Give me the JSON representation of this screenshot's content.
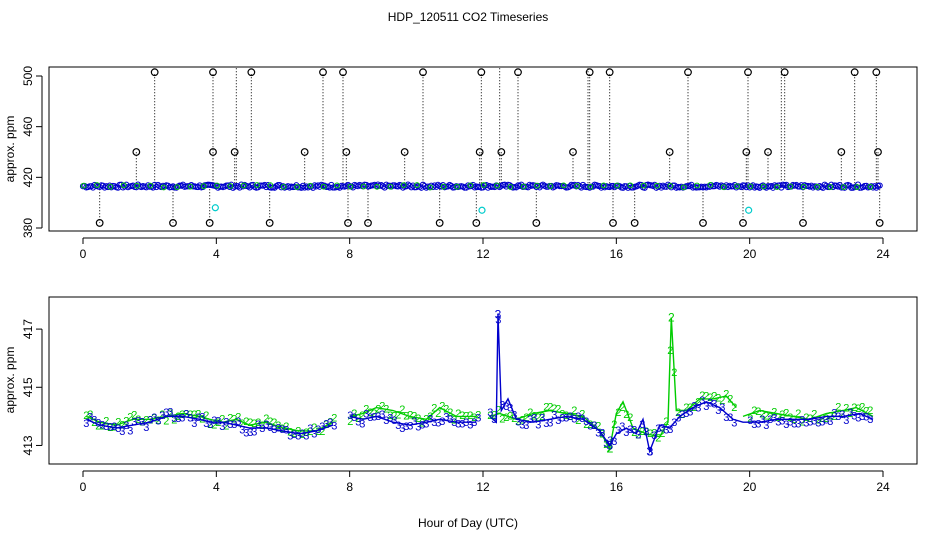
{
  "title": "HDP_120511  CO2 Timeseries",
  "xlabel": "Hour of Day (UTC)",
  "colors": {
    "series1": "#000000",
    "series2": "#00cc00",
    "series3": "#0000cc",
    "marker": "#00cccc"
  },
  "chart_data": [
    {
      "type": "scatter",
      "ylabel": "approx. ppm",
      "xlim": [
        0,
        24
      ],
      "ylim": [
        380,
        500
      ],
      "xticks": [
        "0",
        "4",
        "8",
        "12",
        "16",
        "20",
        "24"
      ],
      "yticks": [
        "380",
        "420",
        "460",
        "500"
      ],
      "baseline": 413,
      "spikes_high": [
        2.15,
        3.9,
        5.05,
        7.2,
        7.8,
        10.2,
        11.95,
        13.05,
        15.2,
        15.8,
        18.15,
        19.95,
        21.05,
        23.15,
        23.8
      ],
      "spikes_mid": [
        1.6,
        3.9,
        4.55,
        6.65,
        7.9,
        9.65,
        11.9,
        12.55,
        14.7,
        17.6,
        19.9,
        20.55,
        22.75,
        23.85
      ],
      "spikes_low": [
        0.5,
        2.7,
        3.8,
        5.6,
        7.95,
        8.55,
        10.7,
        11.8,
        13.6,
        15.9,
        16.55,
        18.6,
        19.8,
        21.6,
        23.9
      ],
      "cyan_points": [
        [
          3.97,
          396
        ],
        [
          11.97,
          394
        ],
        [
          19.97,
          394
        ]
      ],
      "top_marks": [
        4.6,
        12.5,
        15.15,
        20.95
      ]
    },
    {
      "type": "line",
      "ylabel": "approx. ppm",
      "xlim": [
        0,
        24
      ],
      "ylim": [
        412.5,
        418
      ],
      "xticks": [
        "0",
        "4",
        "8",
        "12",
        "16",
        "20",
        "24"
      ],
      "yticks": [
        "413",
        "415",
        "417"
      ],
      "series": [
        {
          "label": "2",
          "key": "series2",
          "points": [
            [
              0.1,
              414.0
            ],
            [
              0.5,
              413.8
            ],
            [
              1.0,
              413.7
            ],
            [
              1.5,
              413.9
            ],
            [
              2.0,
              413.9
            ],
            [
              2.5,
              414.0
            ],
            [
              3.0,
              414.1
            ],
            [
              3.5,
              414.0
            ],
            [
              3.8,
              413.9
            ],
            [
              4.2,
              413.8
            ],
            [
              4.6,
              413.9
            ],
            [
              5.0,
              413.7
            ],
            [
              5.5,
              413.8
            ],
            [
              6.0,
              413.6
            ],
            [
              6.5,
              413.5
            ],
            [
              7.0,
              413.5
            ],
            [
              7.5,
              413.8
            ],
            [
              8.0,
              414.0
            ],
            [
              8.4,
              414.1
            ],
            [
              8.8,
              414.3
            ],
            [
              9.3,
              414.2
            ],
            [
              9.8,
              414.0
            ],
            [
              10.3,
              413.9
            ],
            [
              10.7,
              414.3
            ],
            [
              11.2,
              414.0
            ],
            [
              11.8,
              414.0
            ],
            [
              12.2,
              414.0
            ],
            [
              12.5,
              414.1
            ],
            [
              13.0,
              413.9
            ],
            [
              13.5,
              414.1
            ],
            [
              14.0,
              414.2
            ],
            [
              14.5,
              414.1
            ],
            [
              15.0,
              414.0
            ],
            [
              15.5,
              413.5
            ],
            [
              15.8,
              412.9
            ],
            [
              16.0,
              414.1
            ],
            [
              16.2,
              414.5
            ],
            [
              16.5,
              413.6
            ],
            [
              16.9,
              413.4
            ],
            [
              17.3,
              413.3
            ],
            [
              17.55,
              413.8
            ],
            [
              17.65,
              417.4
            ],
            [
              17.8,
              414.2
            ],
            [
              18.1,
              414.2
            ],
            [
              18.5,
              414.6
            ],
            [
              18.9,
              414.6
            ],
            [
              19.3,
              414.7
            ],
            [
              19.6,
              414.3
            ],
            [
              19.8,
              414.0
            ],
            [
              20.3,
              414.2
            ],
            [
              20.8,
              414.1
            ],
            [
              21.3,
              414.0
            ],
            [
              21.8,
              413.9
            ],
            [
              22.3,
              414.1
            ],
            [
              22.8,
              414.2
            ],
            [
              23.2,
              414.3
            ],
            [
              23.7,
              414.0
            ]
          ]
        },
        {
          "label": "3",
          "key": "series3",
          "points": [
            [
              0.1,
              413.9
            ],
            [
              0.5,
              413.7
            ],
            [
              1.0,
              413.6
            ],
            [
              1.5,
              413.7
            ],
            [
              2.0,
              413.8
            ],
            [
              2.5,
              414.0
            ],
            [
              3.0,
              414.0
            ],
            [
              3.5,
              413.9
            ],
            [
              3.8,
              413.8
            ],
            [
              4.2,
              413.8
            ],
            [
              4.6,
              413.7
            ],
            [
              5.0,
              413.6
            ],
            [
              5.5,
              413.6
            ],
            [
              6.0,
              413.5
            ],
            [
              6.5,
              413.4
            ],
            [
              7.0,
              413.5
            ],
            [
              7.5,
              413.7
            ],
            [
              8.0,
              414.0
            ],
            [
              8.4,
              413.9
            ],
            [
              8.8,
              414.0
            ],
            [
              9.3,
              413.8
            ],
            [
              9.8,
              413.7
            ],
            [
              10.3,
              413.8
            ],
            [
              10.7,
              413.9
            ],
            [
              11.2,
              413.8
            ],
            [
              11.8,
              413.8
            ],
            [
              12.2,
              414.0
            ],
            [
              12.4,
              413.8
            ],
            [
              12.45,
              417.5
            ],
            [
              12.55,
              414.2
            ],
            [
              12.75,
              414.6
            ],
            [
              13.0,
              413.9
            ],
            [
              13.5,
              413.8
            ],
            [
              14.0,
              413.9
            ],
            [
              14.5,
              414.0
            ],
            [
              15.0,
              413.9
            ],
            [
              15.5,
              413.5
            ],
            [
              15.8,
              413.0
            ],
            [
              16.0,
              413.4
            ],
            [
              16.3,
              413.6
            ],
            [
              16.6,
              413.4
            ],
            [
              16.8,
              413.9
            ],
            [
              17.0,
              412.8
            ],
            [
              17.3,
              413.7
            ],
            [
              17.6,
              413.6
            ],
            [
              17.9,
              414.0
            ],
            [
              18.3,
              414.3
            ],
            [
              18.7,
              414.5
            ],
            [
              19.1,
              414.3
            ],
            [
              19.5,
              413.9
            ],
            [
              19.8,
              413.8
            ],
            [
              20.3,
              413.8
            ],
            [
              20.8,
              413.9
            ],
            [
              21.3,
              413.9
            ],
            [
              21.8,
              413.9
            ],
            [
              22.3,
              414.0
            ],
            [
              22.8,
              414.0
            ],
            [
              23.3,
              414.1
            ],
            [
              23.7,
              413.9
            ]
          ]
        }
      ]
    }
  ]
}
